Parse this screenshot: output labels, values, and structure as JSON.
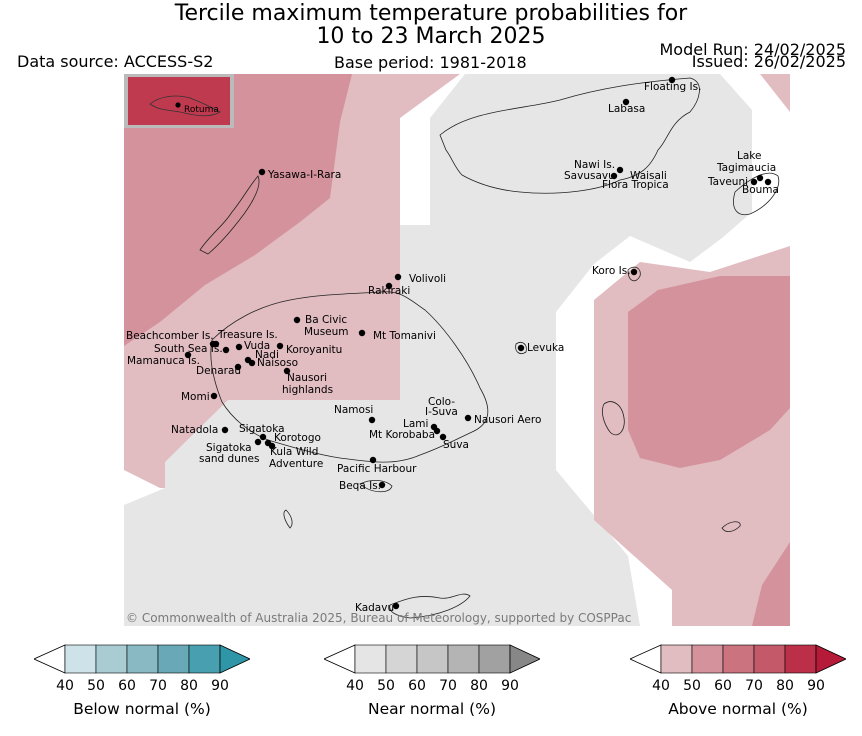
{
  "header": {
    "title_line1": "Tercile maximum temperature probabilities for",
    "title_line2": "10 to 23 March 2025",
    "data_source": "Data source: ACCESS-S2",
    "base_period": "Base period: 1981-2018",
    "model_run": "Model Run: 24/02/2025",
    "issued": "Issued: 26/02/2025"
  },
  "map": {
    "inset_label": "Rotuma",
    "copyright": "© Commonwealth of Australia 2025, Bureau of Meteorology, supported by COSPPac",
    "colors": {
      "above_40": "#e1bcc1",
      "above_50": "#d4939c",
      "near": "#e6e6e6",
      "inset": "#c03a4f"
    },
    "places": [
      {
        "name": "Floating Is."
      },
      {
        "name": "Labasa"
      },
      {
        "name": "Yasawa-I-Rara"
      },
      {
        "name": "Nawi Is."
      },
      {
        "name": "Savusavu"
      },
      {
        "name": "Waisali"
      },
      {
        "name": "Flora Tropica"
      },
      {
        "name": "Lake"
      },
      {
        "name": "Tagimaucia"
      },
      {
        "name": "Taveuni"
      },
      {
        "name": "Bouma"
      },
      {
        "name": "Koro Is."
      },
      {
        "name": "Volivoli"
      },
      {
        "name": "Rakiraki"
      },
      {
        "name": "Ba Civic"
      },
      {
        "name": "Museum"
      },
      {
        "name": "Mt Tomanivi"
      },
      {
        "name": "Beachcomber Is."
      },
      {
        "name": "Treasure Is."
      },
      {
        "name": "South Sea Is."
      },
      {
        "name": "Vuda"
      },
      {
        "name": "Nadi"
      },
      {
        "name": "Koroyanitu"
      },
      {
        "name": "Mamanuca Is."
      },
      {
        "name": "Naisoso"
      },
      {
        "name": "Denarau"
      },
      {
        "name": "Nausori"
      },
      {
        "name": "highlands"
      },
      {
        "name": "Levuka"
      },
      {
        "name": "Momi"
      },
      {
        "name": "Namosi"
      },
      {
        "name": "Colo-"
      },
      {
        "name": "I-Suva"
      },
      {
        "name": "Nausori Aero"
      },
      {
        "name": "Lami"
      },
      {
        "name": "Mt Korobaba"
      },
      {
        "name": "Suva"
      },
      {
        "name": "Natadola"
      },
      {
        "name": "Sigatoka"
      },
      {
        "name": "Korotogo"
      },
      {
        "name": "Sigatoka"
      },
      {
        "name": "sand dunes"
      },
      {
        "name": "Kula Wild"
      },
      {
        "name": "Adventure"
      },
      {
        "name": "Pacific Harbour"
      },
      {
        "name": "Beqa Is."
      },
      {
        "name": "Kadavu"
      }
    ]
  },
  "legends": [
    {
      "label": "Below normal (%)",
      "ticks": [
        "40",
        "50",
        "60",
        "70",
        "80",
        "90"
      ],
      "colors": [
        "#cde3e9",
        "#a9ccd3",
        "#89bac4",
        "#69a9b7",
        "#489fb0",
        "#2e96a6"
      ]
    },
    {
      "label": "Near normal (%)",
      "ticks": [
        "40",
        "50",
        "60",
        "70",
        "80",
        "90"
      ],
      "colors": [
        "#e5e5e5",
        "#d5d5d5",
        "#c6c6c6",
        "#b4b4b4",
        "#a1a1a1",
        "#878787"
      ]
    },
    {
      "label": "Above normal (%)",
      "ticks": [
        "40",
        "50",
        "60",
        "70",
        "80",
        "90"
      ],
      "colors": [
        "#e1bcc1",
        "#d4939c",
        "#cb737e",
        "#c4596a",
        "#bb3048",
        "#b51a39"
      ]
    }
  ]
}
